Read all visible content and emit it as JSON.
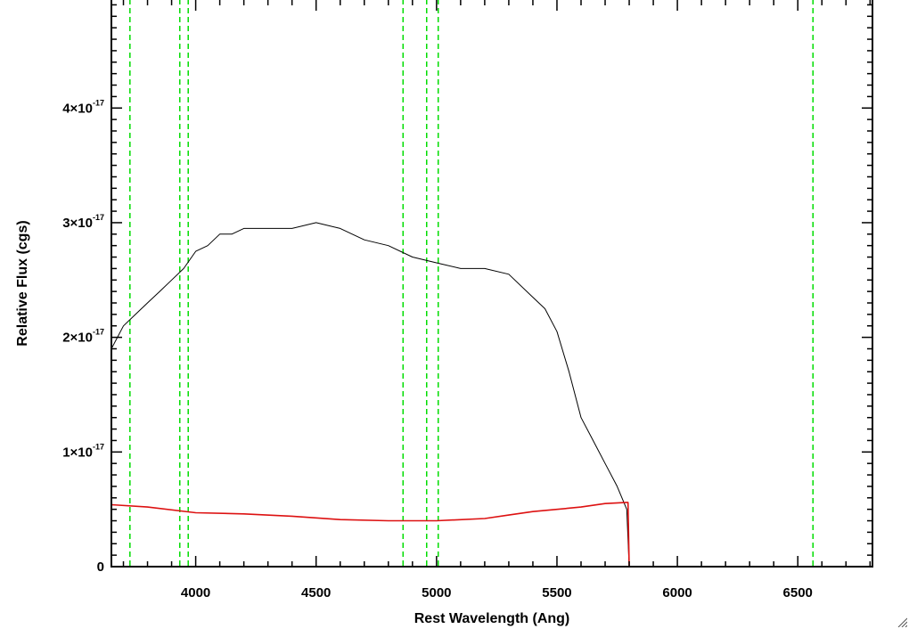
{
  "chart_data": {
    "type": "line",
    "xlabel": "Rest Wavelength (Ang)",
    "ylabel": "Relative Flux (cgs)",
    "xlim": [
      3650,
      6810
    ],
    "ylim": [
      0,
      4.95e-17
    ],
    "xticks": [
      {
        "value": 4000,
        "label": "4000"
      },
      {
        "value": 4500,
        "label": "4500"
      },
      {
        "value": 5000,
        "label": "5000"
      },
      {
        "value": 5500,
        "label": "5500"
      },
      {
        "value": 6000,
        "label": "6000"
      },
      {
        "value": 6500,
        "label": "6500"
      }
    ],
    "yticks": [
      {
        "value": 0,
        "mantissa": "0",
        "exponent": ""
      },
      {
        "value": 1e-17,
        "mantissa": "1×10",
        "exponent": "-17"
      },
      {
        "value": 2e-17,
        "mantissa": "2×10",
        "exponent": "-17"
      },
      {
        "value": 3e-17,
        "mantissa": "3×10",
        "exponent": "-17"
      },
      {
        "value": 4e-17,
        "mantissa": "4×10",
        "exponent": "-17"
      }
    ],
    "grid": false,
    "vlines": [
      3727,
      3934,
      3969,
      4861,
      4959,
      5007,
      6563
    ],
    "series": [
      {
        "color": "#000000",
        "x": [
          3650,
          3700,
          3750,
          3800,
          3850,
          3900,
          3950,
          4000,
          4050,
          4100,
          4150,
          4200,
          4300,
          4400,
          4500,
          4600,
          4700,
          4800,
          4900,
          5000,
          5100,
          5200,
          5300,
          5400,
          5450,
          5500,
          5550,
          5600,
          5650,
          5700,
          5750,
          5790,
          5800,
          6810
        ],
        "y": [
          1.9e-17,
          2.1e-17,
          2.2e-17,
          2.3e-17,
          2.4e-17,
          2.5e-17,
          2.6e-17,
          2.75e-17,
          2.8e-17,
          2.9e-17,
          2.9e-17,
          2.95e-17,
          2.95e-17,
          2.95e-17,
          3e-17,
          2.95e-17,
          2.85e-17,
          2.8e-17,
          2.7e-17,
          2.65e-17,
          2.6e-17,
          2.6e-17,
          2.55e-17,
          2.35e-17,
          2.25e-17,
          2.05e-17,
          1.7e-17,
          1.3e-17,
          1.1e-17,
          9e-18,
          7e-18,
          5e-18,
          0,
          0
        ]
      },
      {
        "color": "#dd1111",
        "x": [
          3650,
          3800,
          4000,
          4200,
          4400,
          4600,
          4800,
          5000,
          5200,
          5300,
          5400,
          5500,
          5600,
          5700,
          5790,
          5795,
          5800,
          6810
        ],
        "y": [
          5.4e-18,
          5.2e-18,
          4.7e-18,
          4.6e-18,
          4.4e-18,
          4.1e-18,
          4e-18,
          4e-18,
          4.2e-18,
          4.5e-18,
          4.8e-18,
          5e-18,
          5.2e-18,
          5.5e-18,
          5.6e-18,
          5.6e-18,
          0,
          0
        ]
      }
    ]
  },
  "icons": {
    "resize": "resize-grip-icon"
  },
  "colors": {
    "vline": "#00dd00",
    "axes": "#000000"
  }
}
